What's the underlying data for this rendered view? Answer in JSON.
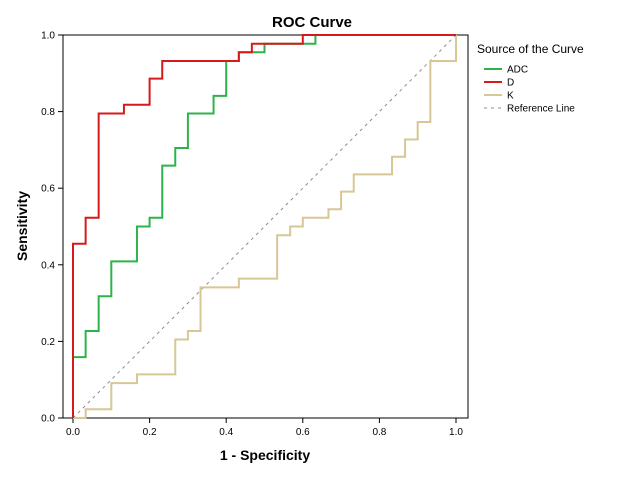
{
  "chart_data": {
    "type": "line",
    "title": "ROC Curve",
    "xlabel": "1 - Specificity",
    "ylabel": "Sensitivity",
    "xlim": [
      0,
      1
    ],
    "ylim": [
      0,
      1
    ],
    "xticks": [
      0.0,
      0.2,
      0.4,
      0.6,
      0.8,
      1.0
    ],
    "xtick_labels": [
      "0.0",
      "0.2",
      "0.4",
      "0.6",
      "0.8",
      "1.0"
    ],
    "yticks": [
      0.0,
      0.2,
      0.4,
      0.6,
      0.8,
      1.0
    ],
    "ytick_labels": [
      "0.0",
      "0.2",
      "0.4",
      "0.6",
      "0.8",
      "1.0"
    ],
    "grid": false,
    "legend_title": "Source of the Curve",
    "legend_position": "right",
    "series": [
      {
        "name": "ADC",
        "color": "#2db34a",
        "style": "solid",
        "points": [
          [
            0,
            0
          ],
          [
            0,
            0.159
          ],
          [
            0.033,
            0.159
          ],
          [
            0.033,
            0.227
          ],
          [
            0.067,
            0.227
          ],
          [
            0.067,
            0.318
          ],
          [
            0.1,
            0.318
          ],
          [
            0.1,
            0.409
          ],
          [
            0.167,
            0.409
          ],
          [
            0.167,
            0.5
          ],
          [
            0.2,
            0.5
          ],
          [
            0.2,
            0.523
          ],
          [
            0.233,
            0.523
          ],
          [
            0.233,
            0.659
          ],
          [
            0.267,
            0.659
          ],
          [
            0.267,
            0.705
          ],
          [
            0.3,
            0.705
          ],
          [
            0.3,
            0.795
          ],
          [
            0.367,
            0.795
          ],
          [
            0.367,
            0.841
          ],
          [
            0.4,
            0.841
          ],
          [
            0.4,
            0.932
          ],
          [
            0.433,
            0.932
          ],
          [
            0.433,
            0.955
          ],
          [
            0.5,
            0.955
          ],
          [
            0.5,
            0.977
          ],
          [
            0.633,
            0.977
          ],
          [
            0.633,
            1.0
          ],
          [
            1.0,
            1.0
          ]
        ]
      },
      {
        "name": "D",
        "color": "#d7191c",
        "style": "solid",
        "points": [
          [
            0,
            0
          ],
          [
            0,
            0.455
          ],
          [
            0.033,
            0.455
          ],
          [
            0.033,
            0.523
          ],
          [
            0.067,
            0.523
          ],
          [
            0.067,
            0.795
          ],
          [
            0.133,
            0.795
          ],
          [
            0.133,
            0.818
          ],
          [
            0.2,
            0.818
          ],
          [
            0.2,
            0.886
          ],
          [
            0.233,
            0.886
          ],
          [
            0.233,
            0.932
          ],
          [
            0.433,
            0.932
          ],
          [
            0.433,
            0.955
          ],
          [
            0.467,
            0.955
          ],
          [
            0.467,
            0.977
          ],
          [
            0.6,
            0.977
          ],
          [
            0.6,
            1.0
          ],
          [
            1.0,
            1.0
          ]
        ]
      },
      {
        "name": "K",
        "color": "#d6c795",
        "style": "solid",
        "points": [
          [
            0,
            0
          ],
          [
            0.033,
            0
          ],
          [
            0.033,
            0.023
          ],
          [
            0.1,
            0.023
          ],
          [
            0.1,
            0.091
          ],
          [
            0.167,
            0.091
          ],
          [
            0.167,
            0.114
          ],
          [
            0.267,
            0.114
          ],
          [
            0.267,
            0.205
          ],
          [
            0.3,
            0.205
          ],
          [
            0.3,
            0.227
          ],
          [
            0.333,
            0.227
          ],
          [
            0.333,
            0.341
          ],
          [
            0.433,
            0.341
          ],
          [
            0.433,
            0.364
          ],
          [
            0.533,
            0.364
          ],
          [
            0.533,
            0.477
          ],
          [
            0.567,
            0.477
          ],
          [
            0.567,
            0.5
          ],
          [
            0.6,
            0.5
          ],
          [
            0.6,
            0.523
          ],
          [
            0.667,
            0.523
          ],
          [
            0.667,
            0.545
          ],
          [
            0.7,
            0.545
          ],
          [
            0.7,
            0.591
          ],
          [
            0.733,
            0.591
          ],
          [
            0.733,
            0.636
          ],
          [
            0.833,
            0.636
          ],
          [
            0.833,
            0.682
          ],
          [
            0.867,
            0.682
          ],
          [
            0.867,
            0.727
          ],
          [
            0.9,
            0.727
          ],
          [
            0.9,
            0.773
          ],
          [
            0.933,
            0.773
          ],
          [
            0.933,
            0.932
          ],
          [
            1.0,
            0.932
          ],
          [
            1.0,
            1.0
          ]
        ]
      },
      {
        "name": "Reference Line",
        "color": "#8c8c8c",
        "style": "dashed",
        "points": [
          [
            0,
            0
          ],
          [
            1,
            1
          ]
        ]
      }
    ]
  }
}
